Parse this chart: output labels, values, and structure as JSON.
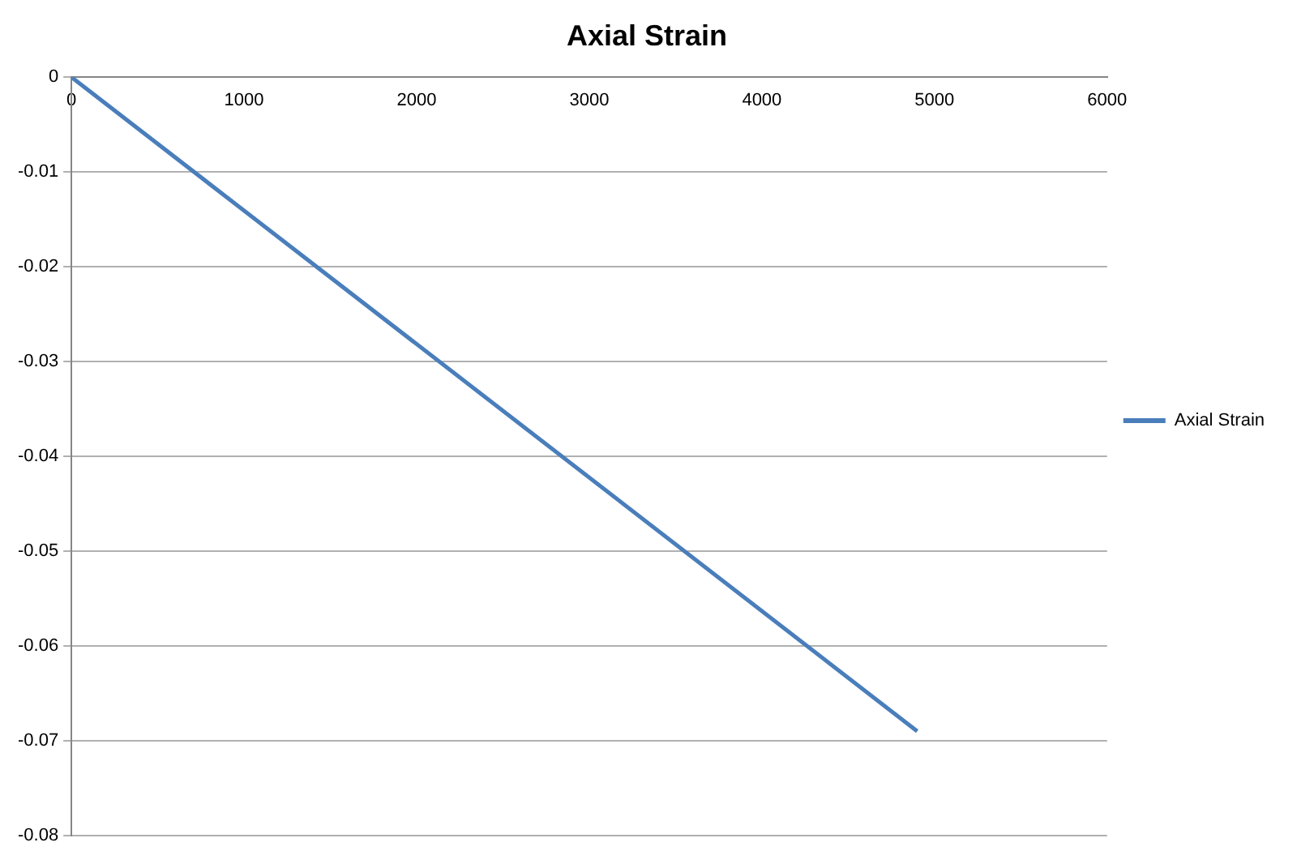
{
  "chart_data": {
    "type": "line",
    "title": "Axial Strain",
    "x": [
      0,
      4900
    ],
    "series": [
      {
        "name": "Axial Strain",
        "color": "#4a7ebb",
        "values": [
          0,
          -0.069
        ]
      }
    ],
    "xlim": [
      0,
      6000
    ],
    "xticks": [
      0,
      1000,
      2000,
      3000,
      4000,
      5000,
      6000
    ],
    "ylim": [
      -0.08,
      0
    ],
    "yticks": [
      -0.08,
      -0.07,
      -0.06,
      -0.05,
      -0.04,
      -0.03,
      -0.02,
      -0.01,
      0
    ],
    "grid": "y",
    "legend": "right",
    "marker": "none",
    "line_style": "solid"
  }
}
